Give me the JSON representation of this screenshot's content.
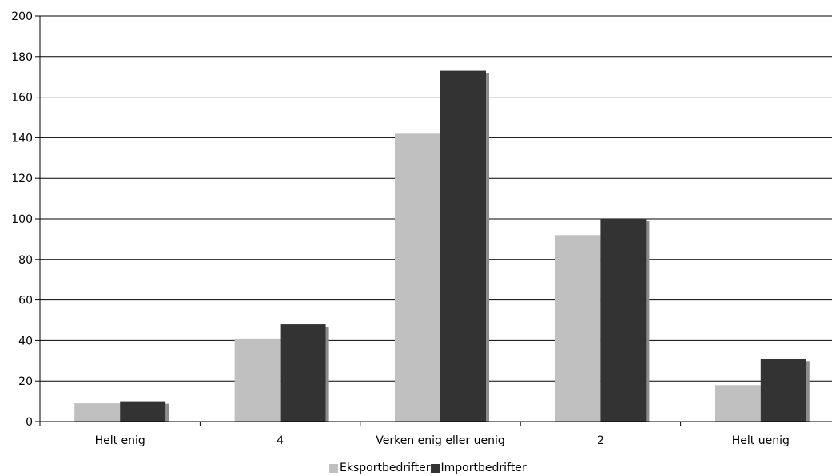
{
  "chart_data": {
    "type": "bar",
    "categories": [
      "Helt enig",
      "4",
      "Verken enig eller uenig",
      "2",
      "Helt uenig"
    ],
    "series": [
      {
        "name": "Eksportbedrifter",
        "values": [
          9,
          41,
          142,
          92,
          18
        ],
        "color": "#c0c0c0"
      },
      {
        "name": "Importbedrifter",
        "values": [
          10,
          48,
          173,
          100,
          31
        ],
        "color": "#333333"
      }
    ],
    "ylim": [
      0,
      200
    ],
    "yticks": [
      0,
      20,
      40,
      60,
      80,
      100,
      120,
      140,
      160,
      180,
      200
    ],
    "grid": true,
    "legend_position": "bottom"
  }
}
